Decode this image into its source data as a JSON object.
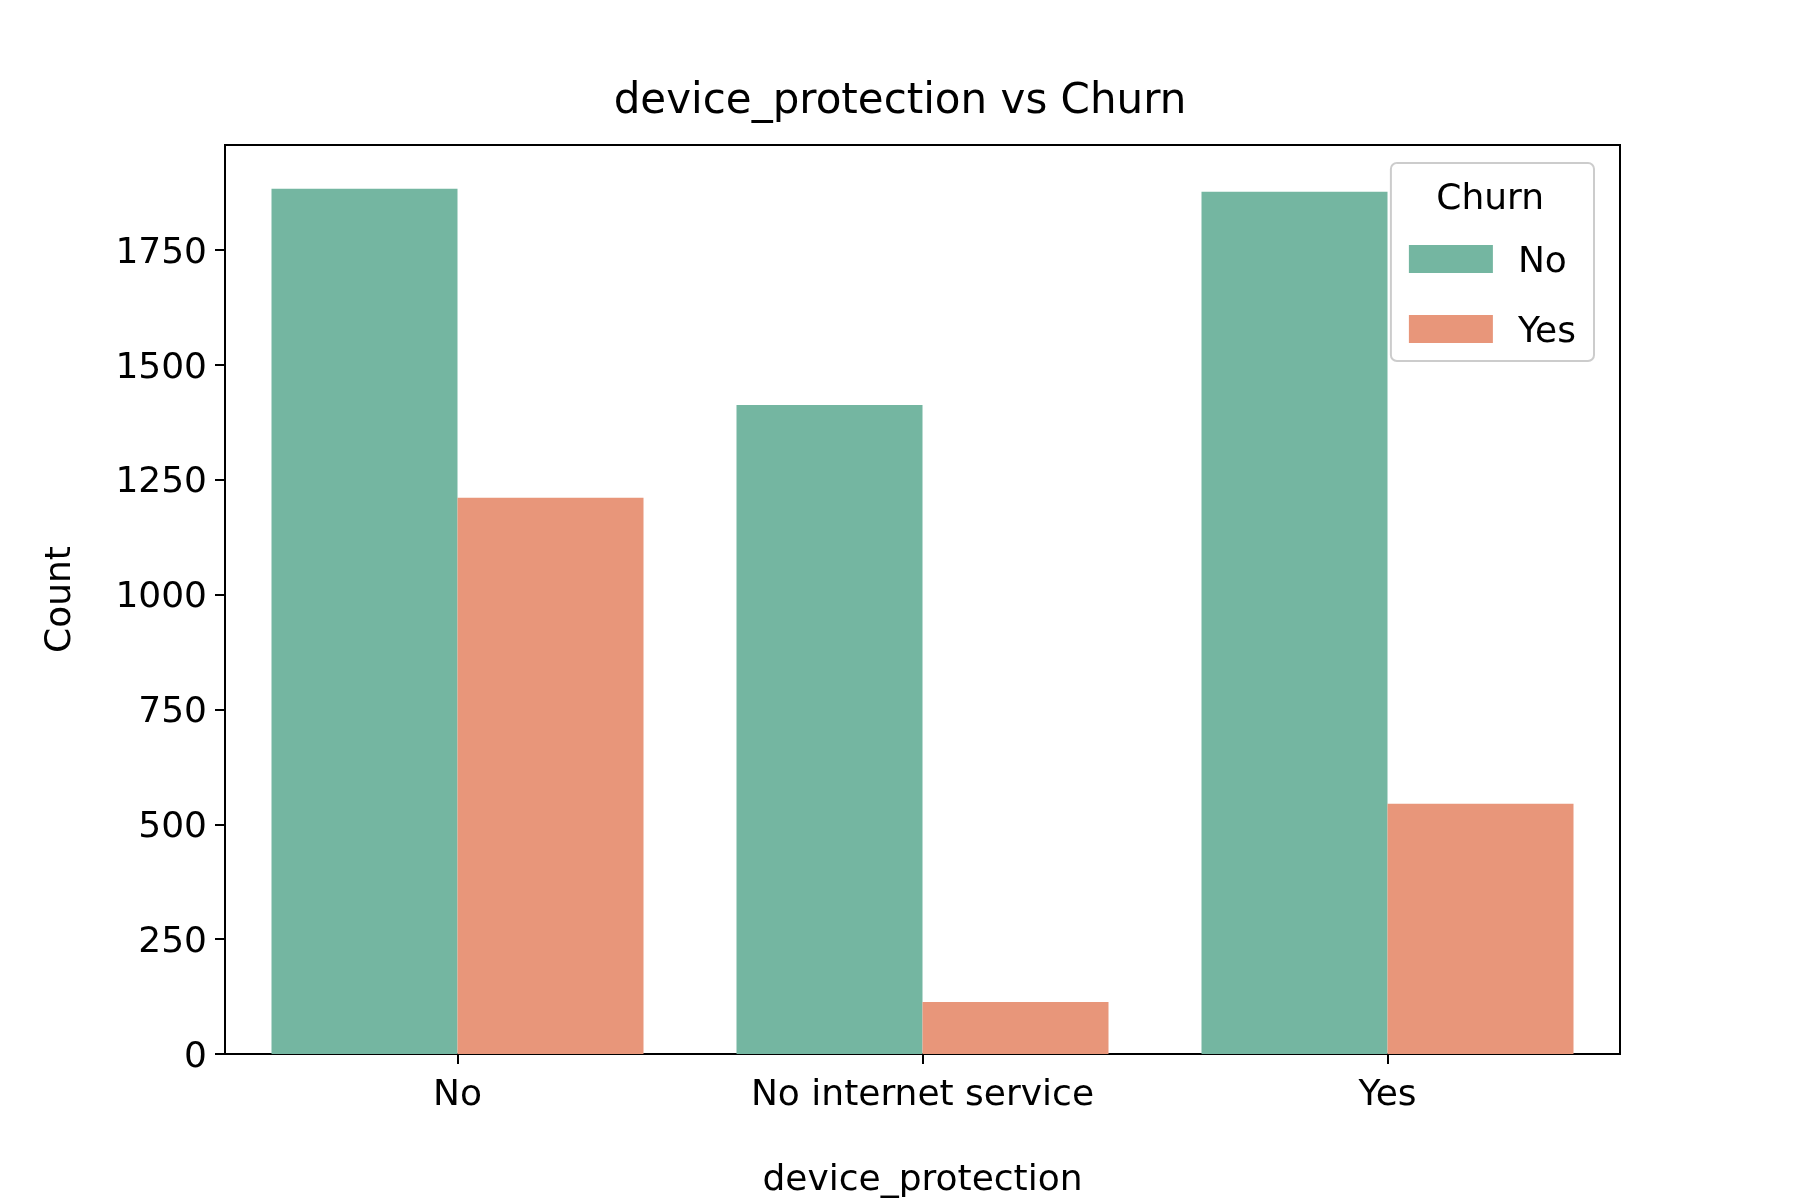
{
  "chart_data": {
    "type": "bar",
    "title": "device_protection vs Churn",
    "xlabel": "device_protection",
    "ylabel": "Count",
    "legend_title": "Churn",
    "categories": [
      "No",
      "No internet service",
      "Yes"
    ],
    "series": [
      {
        "name": "No",
        "color": "#74b6a1",
        "values": [
          1884,
          1413,
          1877
        ]
      },
      {
        "name": "Yes",
        "color": "#e8967a",
        "values": [
          1211,
          113,
          545
        ]
      }
    ],
    "ylim": [
      0,
      1979
    ],
    "yticks": [
      0,
      250,
      500,
      750,
      1000,
      1250,
      1500,
      1750
    ],
    "grid": false,
    "legend": "top right"
  }
}
